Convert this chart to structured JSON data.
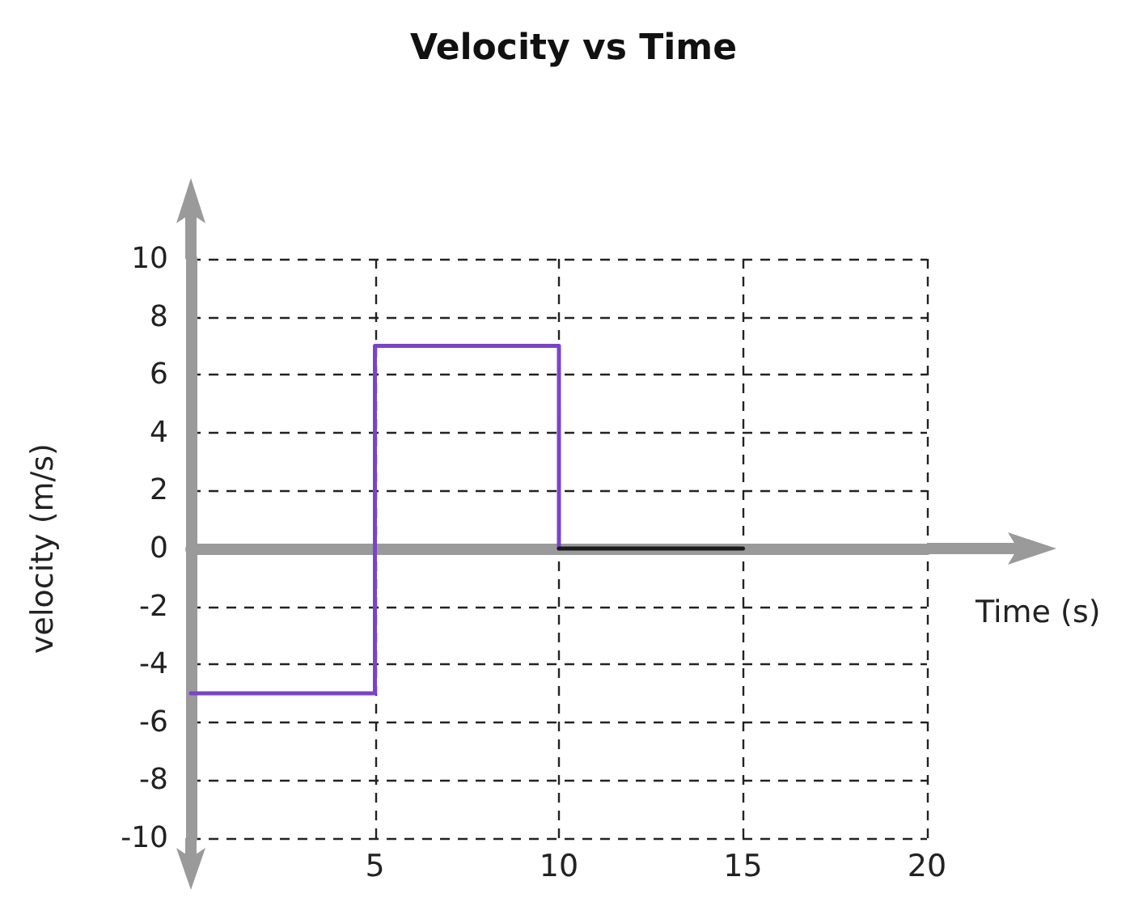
{
  "chart_data": {
    "type": "line",
    "title": "Velocity vs Time",
    "xlabel": "Time (s)",
    "ylabel": "velocity (m/s)",
    "series": [
      {
        "color": "#7a44c8",
        "x": [
          0,
          5,
          5,
          10,
          10
        ],
        "values": [
          -5,
          -5,
          7,
          7,
          0
        ]
      },
      {
        "color": "#1a1a1a",
        "x": [
          10,
          15
        ],
        "values": [
          0,
          0
        ]
      }
    ],
    "xlim": [
      0,
      20
    ],
    "xticks": [
      5,
      10,
      15,
      20
    ],
    "ylim": [
      -10,
      10
    ],
    "yticks": [
      -10,
      -8,
      -6,
      -4,
      -2,
      0,
      2,
      4,
      6,
      8,
      10
    ],
    "grid": true,
    "marker": "none",
    "line_style": "solid"
  }
}
